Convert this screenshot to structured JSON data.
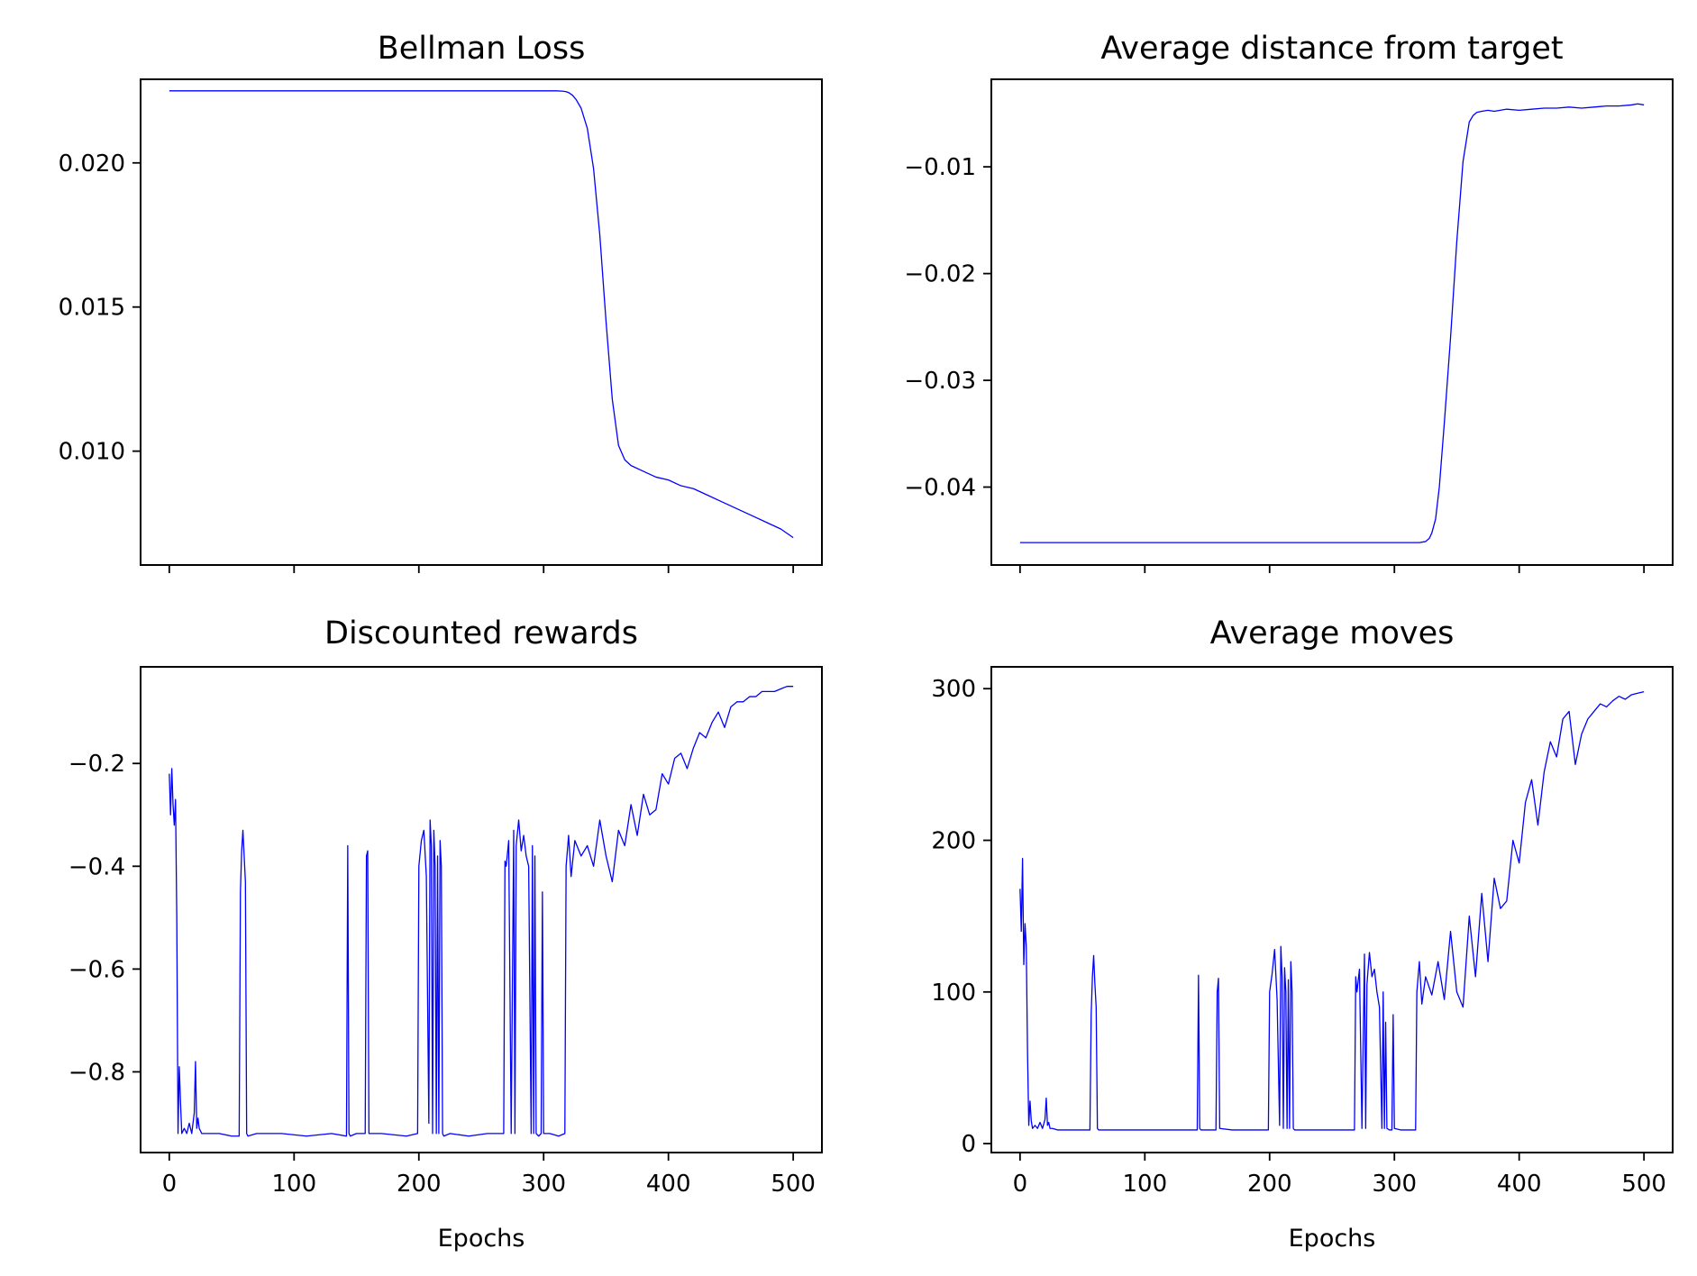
{
  "figure": {
    "line_color": "#0000ff",
    "axis_color": "#000000",
    "background": "#ffffff"
  },
  "chart_data": [
    {
      "type": "line",
      "title": "Bellman Loss",
      "xlabel": "",
      "ylabel": "",
      "xlim": [
        -23,
        523
      ],
      "ylim": [
        0.00605,
        0.0229
      ],
      "xticks": [
        0,
        100,
        200,
        300,
        400,
        500
      ],
      "xtick_labels_visible": false,
      "yticks": [
        0.01,
        0.015,
        0.02
      ],
      "ytick_labels": [
        "0.010",
        "0.015",
        "0.020"
      ],
      "grid": false,
      "legend": "none",
      "series": [
        {
          "x": [
            0,
            50,
            100,
            150,
            200,
            250,
            300,
            310,
            315,
            318,
            320,
            323,
            326,
            330,
            335,
            340,
            345,
            350,
            355,
            360,
            365,
            370,
            380,
            390,
            400,
            410,
            420,
            430,
            440,
            450,
            460,
            470,
            480,
            490,
            500
          ],
          "y": [
            0.0225,
            0.0225,
            0.0225,
            0.0225,
            0.0225,
            0.0225,
            0.0225,
            0.0225,
            0.02249,
            0.02247,
            0.02244,
            0.02235,
            0.0222,
            0.0219,
            0.0212,
            0.0198,
            0.0175,
            0.0145,
            0.0118,
            0.0102,
            0.0097,
            0.0095,
            0.0093,
            0.0091,
            0.009,
            0.0088,
            0.0087,
            0.0085,
            0.0083,
            0.0081,
            0.0079,
            0.0077,
            0.0075,
            0.0073,
            0.007
          ]
        }
      ]
    },
    {
      "type": "line",
      "title": "Average distance from target",
      "xlabel": "",
      "ylabel": "",
      "xlim": [
        -23,
        523
      ],
      "ylim": [
        -0.0473,
        -0.0018
      ],
      "xticks": [
        0,
        100,
        200,
        300,
        400,
        500
      ],
      "xtick_labels_visible": false,
      "yticks": [
        -0.04,
        -0.03,
        -0.02,
        -0.01
      ],
      "ytick_labels": [
        "−0.04",
        "−0.03",
        "−0.02",
        "−0.01"
      ],
      "grid": false,
      "legend": "none",
      "series": [
        {
          "x": [
            0,
            50,
            100,
            150,
            200,
            250,
            300,
            320,
            325,
            328,
            330,
            333,
            336,
            340,
            345,
            350,
            355,
            360,
            363,
            366,
            370,
            375,
            380,
            390,
            400,
            410,
            420,
            430,
            440,
            450,
            460,
            470,
            480,
            490,
            495,
            500
          ],
          "y": [
            -0.0452,
            -0.0452,
            -0.0452,
            -0.0452,
            -0.0452,
            -0.0452,
            -0.0452,
            -0.0452,
            -0.0451,
            -0.0448,
            -0.0443,
            -0.043,
            -0.04,
            -0.034,
            -0.026,
            -0.017,
            -0.0095,
            -0.0058,
            -0.0052,
            -0.0049,
            -0.0048,
            -0.0047,
            -0.0048,
            -0.0046,
            -0.0047,
            -0.0046,
            -0.0045,
            -0.0045,
            -0.0044,
            -0.0045,
            -0.0044,
            -0.0043,
            -0.0043,
            -0.0042,
            -0.0041,
            -0.0042
          ]
        }
      ]
    },
    {
      "type": "line",
      "title": "Discounted rewards",
      "xlabel": "Epochs",
      "ylabel": "",
      "xlim": [
        -23,
        523
      ],
      "ylim": [
        -0.957,
        -0.012
      ],
      "xticks": [
        0,
        100,
        200,
        300,
        400,
        500
      ],
      "xtick_labels": [
        "0",
        "100",
        "200",
        "300",
        "400",
        "500"
      ],
      "yticks": [
        -0.8,
        -0.6,
        -0.4,
        -0.2
      ],
      "ytick_labels": [
        "−0.8",
        "−0.6",
        "−0.4",
        "−0.2"
      ],
      "grid": false,
      "legend": "none",
      "series": [
        {
          "x": [
            0,
            1,
            2,
            3,
            4,
            5,
            6,
            7,
            8,
            9,
            10,
            12,
            14,
            16,
            18,
            20,
            21,
            22,
            23,
            24,
            26,
            30,
            40,
            50,
            56,
            57,
            58,
            59,
            60,
            61,
            62,
            63,
            70,
            90,
            110,
            130,
            142,
            143,
            144,
            145,
            150,
            157,
            158,
            159,
            160,
            170,
            190,
            199,
            200,
            202,
            204,
            206,
            208,
            209,
            210,
            211,
            212,
            213,
            214,
            215,
            216,
            217,
            218,
            219,
            220,
            225,
            240,
            255,
            268,
            269,
            270,
            272,
            274,
            276,
            277,
            278,
            280,
            282,
            284,
            286,
            288,
            290,
            291,
            292,
            293,
            294,
            296,
            298,
            299,
            300,
            305,
            312,
            317,
            318,
            320,
            322,
            325,
            330,
            335,
            340,
            345,
            350,
            355,
            360,
            365,
            370,
            375,
            380,
            385,
            390,
            395,
            400,
            405,
            410,
            415,
            420,
            425,
            430,
            435,
            440,
            445,
            450,
            455,
            460,
            465,
            470,
            475,
            480,
            485,
            490,
            495,
            500
          ],
          "y": [
            -0.22,
            -0.3,
            -0.21,
            -0.28,
            -0.32,
            -0.27,
            -0.5,
            -0.92,
            -0.79,
            -0.86,
            -0.92,
            -0.91,
            -0.92,
            -0.9,
            -0.92,
            -0.88,
            -0.78,
            -0.91,
            -0.89,
            -0.91,
            -0.92,
            -0.92,
            -0.92,
            -0.925,
            -0.925,
            -0.45,
            -0.37,
            -0.33,
            -0.38,
            -0.43,
            -0.92,
            -0.925,
            -0.92,
            -0.92,
            -0.925,
            -0.92,
            -0.925,
            -0.36,
            -0.92,
            -0.925,
            -0.92,
            -0.92,
            -0.38,
            -0.37,
            -0.92,
            -0.92,
            -0.925,
            -0.92,
            -0.4,
            -0.35,
            -0.33,
            -0.42,
            -0.9,
            -0.31,
            -0.36,
            -0.92,
            -0.33,
            -0.4,
            -0.92,
            -0.38,
            -0.92,
            -0.35,
            -0.4,
            -0.92,
            -0.925,
            -0.92,
            -0.925,
            -0.92,
            -0.92,
            -0.39,
            -0.4,
            -0.35,
            -0.92,
            -0.33,
            -0.92,
            -0.36,
            -0.31,
            -0.37,
            -0.34,
            -0.38,
            -0.4,
            -0.92,
            -0.36,
            -0.92,
            -0.38,
            -0.92,
            -0.925,
            -0.92,
            -0.45,
            -0.92,
            -0.92,
            -0.925,
            -0.92,
            -0.4,
            -0.34,
            -0.42,
            -0.35,
            -0.38,
            -0.36,
            -0.4,
            -0.31,
            -0.38,
            -0.43,
            -0.33,
            -0.36,
            -0.28,
            -0.34,
            -0.26,
            -0.3,
            -0.29,
            -0.22,
            -0.24,
            -0.19,
            -0.18,
            -0.21,
            -0.17,
            -0.14,
            -0.15,
            -0.12,
            -0.1,
            -0.13,
            -0.09,
            -0.08,
            -0.08,
            -0.07,
            -0.07,
            -0.06,
            -0.06,
            -0.06,
            -0.055,
            -0.05,
            -0.05
          ]
        }
      ]
    },
    {
      "type": "line",
      "title": "Average moves",
      "xlabel": "Epochs",
      "ylabel": "",
      "xlim": [
        -23,
        523
      ],
      "ylim": [
        -5.9,
        314.4
      ],
      "xticks": [
        0,
        100,
        200,
        300,
        400,
        500
      ],
      "xtick_labels": [
        "0",
        "100",
        "200",
        "300",
        "400",
        "500"
      ],
      "yticks": [
        0,
        100,
        200,
        300
      ],
      "ytick_labels": [
        "0",
        "100",
        "200",
        "300"
      ],
      "grid": false,
      "legend": "none",
      "series": [
        {
          "x": [
            0,
            1,
            2,
            3,
            4,
            5,
            6,
            7,
            8,
            9,
            10,
            12,
            14,
            16,
            18,
            20,
            21,
            22,
            23,
            24,
            26,
            30,
            40,
            50,
            56,
            57,
            58,
            59,
            60,
            61,
            62,
            63,
            70,
            90,
            110,
            130,
            142,
            143,
            144,
            145,
            150,
            157,
            158,
            159,
            160,
            170,
            190,
            199,
            200,
            202,
            204,
            206,
            208,
            209,
            210,
            211,
            212,
            213,
            214,
            215,
            216,
            217,
            218,
            219,
            220,
            225,
            240,
            255,
            268,
            269,
            270,
            272,
            274,
            276,
            277,
            278,
            280,
            282,
            284,
            286,
            288,
            290,
            291,
            292,
            293,
            294,
            296,
            298,
            299,
            300,
            305,
            312,
            317,
            318,
            320,
            322,
            325,
            330,
            335,
            340,
            345,
            350,
            355,
            360,
            365,
            370,
            375,
            380,
            385,
            390,
            395,
            400,
            405,
            410,
            415,
            420,
            425,
            430,
            435,
            440,
            445,
            450,
            455,
            460,
            465,
            470,
            475,
            480,
            485,
            490,
            495,
            500
          ],
          "y": [
            168,
            140,
            188,
            118,
            145,
            130,
            60,
            12,
            28,
            15,
            10,
            12,
            10,
            14,
            10,
            16,
            30,
            12,
            14,
            10,
            10,
            9,
            9,
            9,
            9,
            85,
            110,
            124,
            105,
            90,
            10,
            9,
            9,
            9,
            9,
            9,
            9,
            111,
            10,
            9,
            9,
            9,
            100,
            109,
            10,
            9,
            9,
            9,
            100,
            112,
            128,
            95,
            12,
            130,
            110,
            10,
            116,
            100,
            10,
            108,
            10,
            120,
            100,
            10,
            9,
            9,
            9,
            9,
            9,
            110,
            100,
            115,
            10,
            125,
            10,
            105,
            126,
            110,
            115,
            100,
            90,
            10,
            100,
            10,
            80,
            10,
            9,
            9,
            85,
            10,
            9,
            9,
            9,
            100,
            120,
            92,
            110,
            98,
            120,
            95,
            140,
            100,
            90,
            150,
            110,
            165,
            120,
            175,
            155,
            160,
            200,
            185,
            225,
            240,
            210,
            245,
            265,
            255,
            280,
            285,
            250,
            270,
            280,
            285,
            290,
            288,
            292,
            295,
            293,
            296,
            297,
            298
          ]
        }
      ]
    }
  ]
}
